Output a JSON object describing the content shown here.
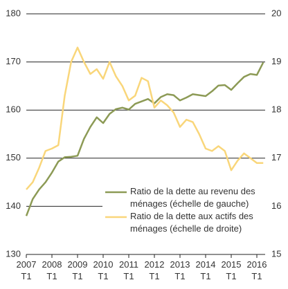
{
  "chart_data": {
    "type": "line",
    "categories": [
      "2007\nT1",
      null,
      null,
      null,
      "2008\nT1",
      null,
      null,
      null,
      "2009\nT1",
      null,
      null,
      null,
      "2010\nT1",
      null,
      null,
      null,
      "2011\nT1",
      null,
      null,
      null,
      "2012\nT1",
      null,
      null,
      null,
      "2013\nT1",
      null,
      null,
      null,
      "2014\nT1",
      null,
      null,
      null,
      "2015\nT1",
      null,
      null,
      null,
      "2016\nT1",
      null
    ],
    "series": [
      {
        "name": "Ratio de la dette au revenu des\nménages (échelle de gauche)",
        "color": "#8c9a55",
        "axis": "y",
        "values": [
          138,
          141.5,
          143.5,
          145,
          147,
          149.3,
          150.2,
          150.3,
          150.5,
          154,
          156.5,
          158.5,
          157.3,
          159.2,
          160.2,
          160.5,
          160.1,
          161.3,
          161.8,
          162.3,
          161.4,
          162.7,
          163.3,
          163.1,
          162,
          162.6,
          163.3,
          163.1,
          162.9,
          163.9,
          165.1,
          165.2,
          164.2,
          165.6,
          166.9,
          167.5,
          167.3,
          169.9
        ]
      },
      {
        "name": "Ratio de la dette aux actifs des\nménages (échelle de droite)",
        "color": "#f9d67a",
        "axis": "y2",
        "values": [
          16.35,
          16.5,
          16.8,
          17.15,
          17.2,
          17.27,
          18.3,
          19.0,
          19.3,
          19.0,
          18.75,
          18.85,
          18.65,
          19.0,
          18.7,
          18.5,
          18.2,
          18.3,
          18.67,
          18.6,
          18.05,
          18.2,
          18.1,
          17.95,
          17.65,
          17.8,
          17.75,
          17.5,
          17.2,
          17.15,
          17.25,
          17.15,
          16.75,
          16.95,
          17.1,
          17.0,
          16.9,
          16.9
        ]
      }
    ],
    "ylim": [
      130,
      180
    ],
    "yticks": [
      130,
      140,
      150,
      160,
      170,
      180
    ],
    "y2lim": [
      15,
      20
    ],
    "y2ticks": [
      15,
      16,
      17,
      18,
      19,
      20
    ],
    "grid": true
  }
}
